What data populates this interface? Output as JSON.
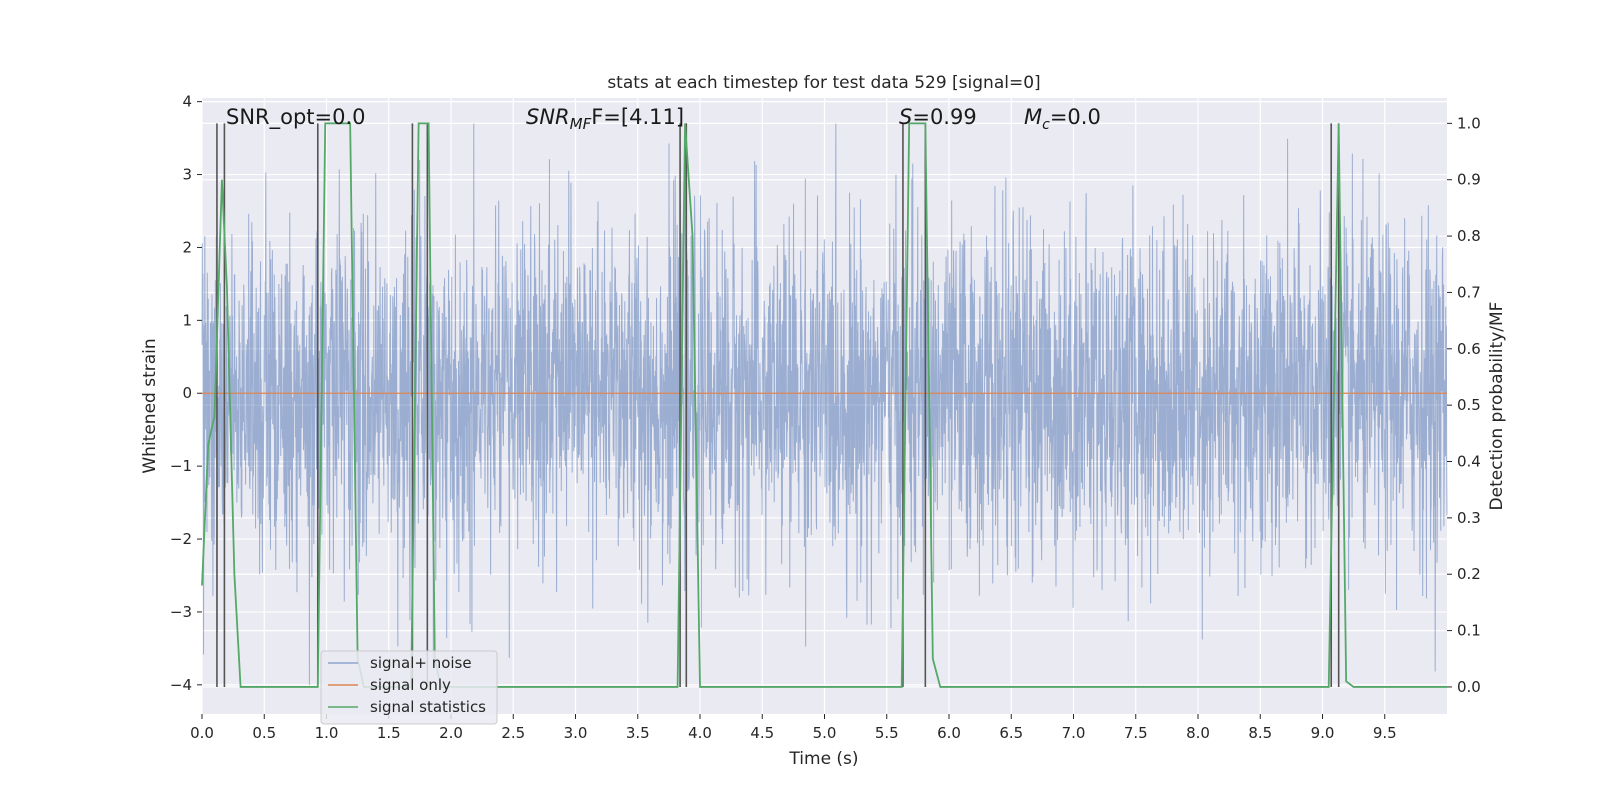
{
  "chart_data": {
    "type": "line",
    "title": "stats at each timestep for test data 529 [signal=0]",
    "xlabel": "Time (s)",
    "ylabel": "Whitened strain",
    "ylabel_right": "Detection probability/MF",
    "xlim": [
      0.0,
      10.0
    ],
    "ylim": [
      -4.4,
      4.05
    ],
    "ylim_right": [
      -0.048,
      1.045
    ],
    "x_ticks": [
      "0.0",
      "0.5",
      "1.0",
      "1.5",
      "2.0",
      "2.5",
      "3.0",
      "3.5",
      "4.0",
      "4.5",
      "5.0",
      "5.5",
      "6.0",
      "6.5",
      "7.0",
      "7.5",
      "8.0",
      "8.5",
      "9.0",
      "9.5"
    ],
    "y_ticks": [
      "-4",
      "-3",
      "-2",
      "-1",
      "0",
      "1",
      "2",
      "3",
      "4"
    ],
    "y_ticks_right": [
      "0.0",
      "0.1",
      "0.2",
      "0.3",
      "0.4",
      "0.5",
      "0.6",
      "0.7",
      "0.8",
      "0.9",
      "1.0"
    ],
    "grid": true,
    "annotations": {
      "snr_opt": "SNR_opt=0.0",
      "snr_mf_prefix": "SNR",
      "snr_mf_sub": "MF",
      "snr_mf_value": "F=[4.11]",
      "s_symbol": "S",
      "s_value": "=0.99",
      "mc_symbol": "M",
      "mc_sub": "c",
      "mc_value": "=0.0"
    },
    "legend": {
      "position": "lower-left",
      "entries": [
        "signal+ noise",
        "signal only",
        "signal statistics"
      ]
    },
    "series": [
      {
        "name": "signal+ noise",
        "axis": "left",
        "color": "#4c72b0",
        "description": "whitened noise, roughly Gaussian, amplitude within about -4 to +4",
        "amplitude_sigma": 1.15,
        "y_range": [
          -4.0,
          3.7
        ]
      },
      {
        "name": "signal only",
        "axis": "left",
        "color": "#dd8452",
        "x": [
          0.0,
          10.0
        ],
        "y": [
          0.0,
          0.0
        ]
      },
      {
        "name": "signal statistics",
        "axis": "right",
        "color": "#55a868",
        "x": [
          0.0,
          0.05,
          0.1,
          0.16,
          0.2,
          0.26,
          0.31,
          0.93,
          0.99,
          1.19,
          1.25,
          1.3,
          1.68,
          1.74,
          1.82,
          1.87,
          1.92,
          3.82,
          3.88,
          3.94,
          4.0,
          5.62,
          5.68,
          5.81,
          5.87,
          5.93,
          9.05,
          9.13,
          9.19,
          9.25,
          10.0
        ],
        "y": [
          0.18,
          0.43,
          0.48,
          0.9,
          0.71,
          0.2,
          0.0,
          0.0,
          1.0,
          1.0,
          0.05,
          0.0,
          0.0,
          1.0,
          1.0,
          0.05,
          0.0,
          0.0,
          1.0,
          0.8,
          0.0,
          0.0,
          1.0,
          1.0,
          0.05,
          0.0,
          0.0,
          1.0,
          0.01,
          0.0,
          0.0
        ]
      },
      {
        "name": "decision markers",
        "axis": "right",
        "color": "#555555",
        "x": [
          0.12,
          0.18,
          0.93,
          1.69,
          1.81,
          3.84,
          3.89,
          5.63,
          5.81,
          9.07,
          9.13
        ]
      }
    ]
  }
}
